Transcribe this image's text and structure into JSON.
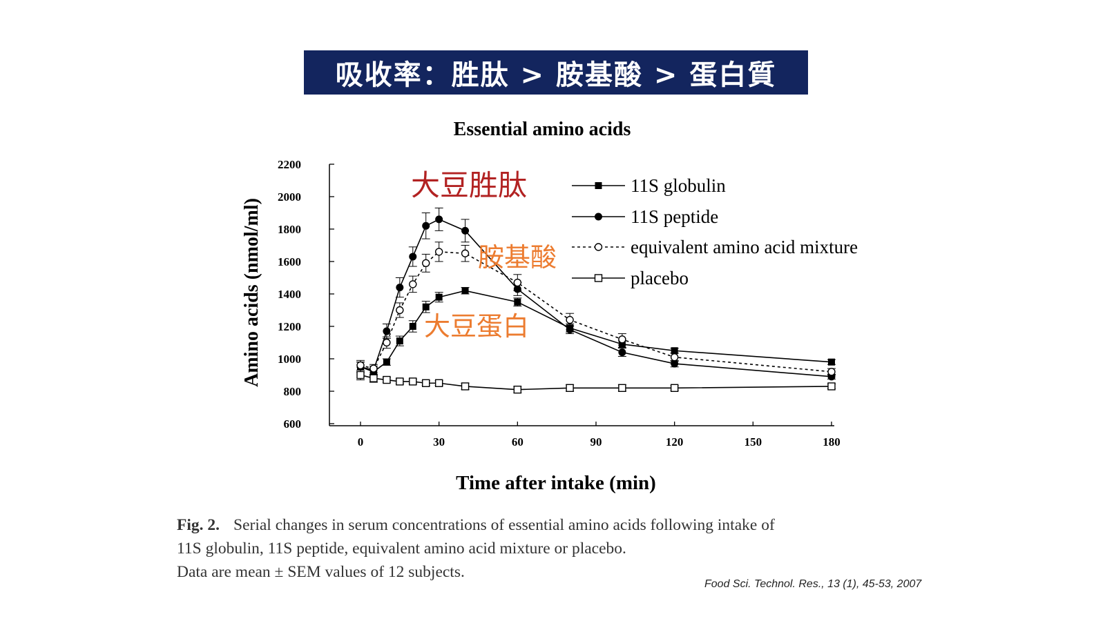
{
  "banner": {
    "text": "吸收率：胜肽 > 胺基酸 > 蛋白質",
    "background": "#13255e",
    "text_color": "#ffffff"
  },
  "chart_data": {
    "type": "line",
    "title": "Essential amino acids",
    "xlabel": "Time after intake (min)",
    "ylabel": "Amino acids (nmol/ml)",
    "xlim": [
      0,
      180
    ],
    "ylim": [
      600,
      2200
    ],
    "xticks": [
      0,
      30,
      60,
      90,
      120,
      150,
      180
    ],
    "yticks": [
      600,
      800,
      1000,
      1200,
      1400,
      1600,
      1800,
      2000,
      2200
    ],
    "grid": false,
    "legend_position": "top-right",
    "x": [
      0,
      5,
      10,
      15,
      20,
      25,
      30,
      40,
      60,
      80,
      100,
      120,
      180
    ],
    "series": [
      {
        "name": "11S globulin",
        "marker": "filled-square",
        "line_style": "solid",
        "values": [
          950,
          920,
          980,
          1110,
          1200,
          1320,
          1380,
          1420,
          1350,
          1190,
          1090,
          1050,
          980
        ],
        "error": [
          30,
          25,
          20,
          30,
          35,
          35,
          30,
          20,
          25,
          25,
          20,
          15,
          15
        ]
      },
      {
        "name": "11S peptide",
        "marker": "filled-circle",
        "line_style": "solid",
        "values": [
          950,
          930,
          1170,
          1440,
          1630,
          1820,
          1860,
          1790,
          1430,
          1180,
          1040,
          970,
          890
        ],
        "error": [
          30,
          25,
          45,
          60,
          60,
          80,
          70,
          70,
          40,
          25,
          25,
          20,
          15
        ]
      },
      {
        "name": "equivalent amino acid mixture",
        "marker": "open-circle",
        "line_style": "dotted",
        "values": [
          960,
          940,
          1100,
          1300,
          1460,
          1590,
          1660,
          1650,
          1470,
          1240,
          1120,
          1010,
          920
        ],
        "error": [
          30,
          25,
          35,
          45,
          50,
          55,
          60,
          50,
          50,
          40,
          35,
          25,
          20
        ]
      },
      {
        "name": "placebo",
        "marker": "open-square",
        "line_style": "solid",
        "values": [
          900,
          880,
          870,
          860,
          860,
          850,
          850,
          830,
          810,
          820,
          820,
          820,
          830
        ],
        "error": [
          30,
          25,
          15,
          15,
          15,
          15,
          15,
          20,
          20,
          20,
          20,
          15,
          15
        ]
      }
    ],
    "annotations": [
      {
        "text": "大豆胜肽",
        "color": "#b22222"
      },
      {
        "text": "胺基酸",
        "color": "#ec7c30"
      },
      {
        "text": "大豆蛋白",
        "color": "#ec7c30"
      }
    ]
  },
  "caption": {
    "fig_label": "Fig. 2.",
    "line1": "Serial changes in serum concentrations of essential amino acids following intake of",
    "line2": "11S globulin, 11S peptide, equivalent amino acid mixture or placebo.",
    "line3": "Data are mean ± SEM values of 12 subjects."
  },
  "source": "Food Sci. Technol. Res., 13 (1), 45-53, 2007"
}
